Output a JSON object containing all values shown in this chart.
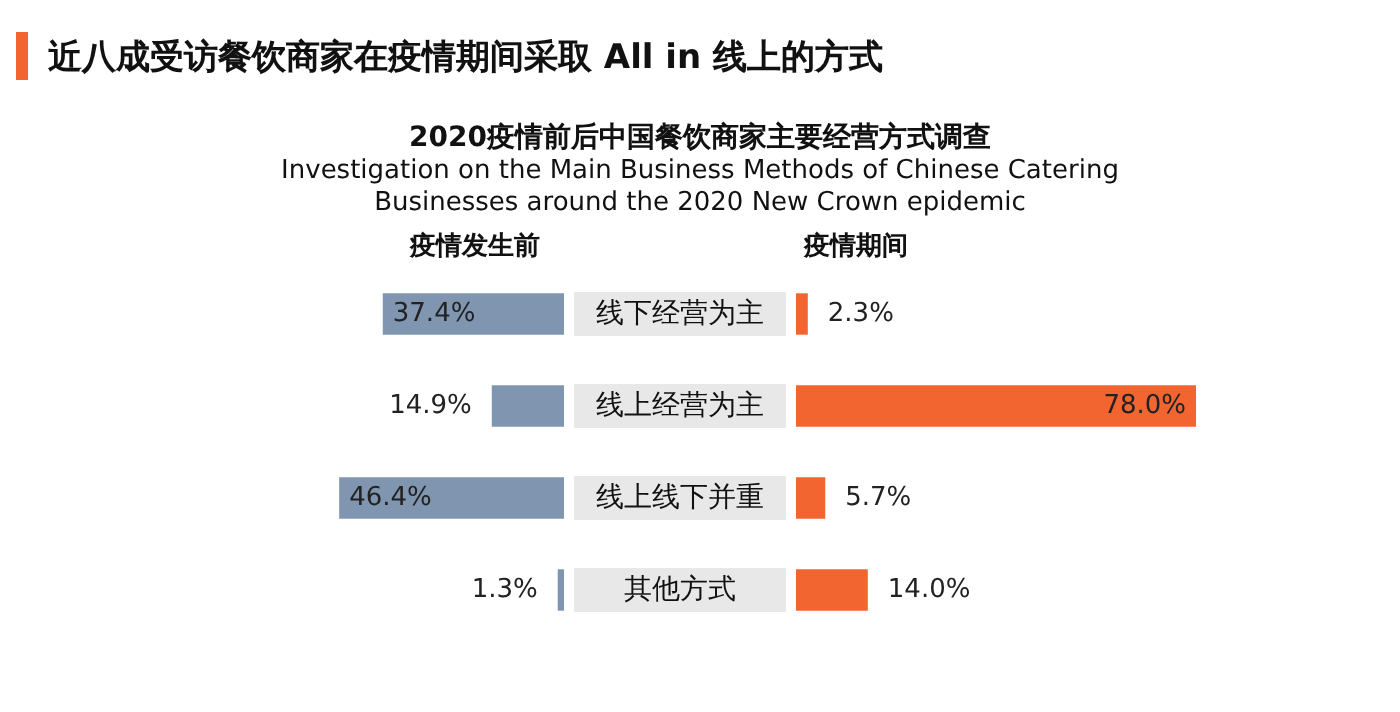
{
  "chart_data": [
    {
      "type": "bar",
      "orientation": "horizontal",
      "title": "近八成受访餐饮商家在疫情期间采取 All in 线上的方式",
      "subtitle": "2020疫情前后中国餐饮商家主要经营方式调查",
      "annotations": [
        "Investigation on the Main Business Methods of Chinese Catering Businesses around the 2020 New Crown epidemic"
      ],
      "categories": [
        "线下经营为主",
        "线上经营为主",
        "线上线下并重",
        "其他方式"
      ],
      "series": [
        {
          "name": "疫情发生前",
          "color": "#8096b0",
          "values": [
            37.4,
            14.9,
            46.4,
            1.3
          ],
          "value_labels": [
            "37.4%",
            "14.9%",
            "46.4%",
            "1.3%"
          ]
        }
      ]
    },
    {
      "type": "bar",
      "orientation": "horizontal",
      "categories": [
        null,
        null,
        null,
        null
      ],
      "tick_labels": false,
      "series": [
        {
          "name": "疫情期间",
          "color": "#f26430",
          "values": [
            2.3,
            78.0,
            5.7,
            14.0
          ],
          "value_labels": [
            "2.3%",
            "78.0%",
            "5.7%",
            "14.0%"
          ]
        }
      ]
    }
  ]
}
